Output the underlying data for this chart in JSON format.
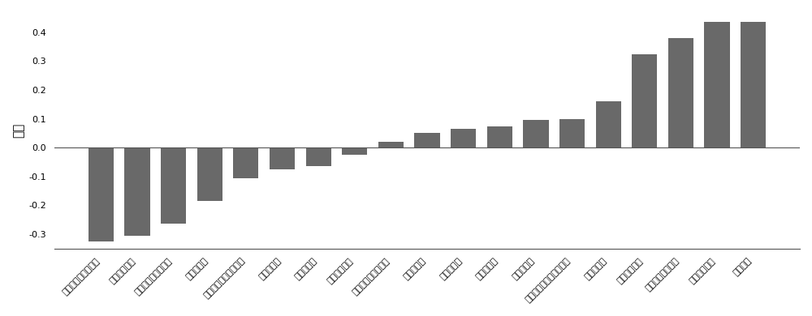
{
  "categories": [
    "右侧顶内沟和顶横沟",
    "左侧中央后沟",
    "右侧外侧裂前水平支",
    "右侧距状沟",
    "右侧岛长回及岛中央沟",
    "右侧侧副沟",
    "右侧中央沟",
    "右侧中央后沟",
    "右侧枕上沟及枕横沟",
    "左侧额中回",
    "左侧枕上回",
    "左侧膈下沟",
    "左侧枕上回",
    "右侧中央前回及中央前沟",
    "右侧枕横沟",
    "右侧额叶皮质",
    "左侧额下回三角部",
    "左侧中央前沟",
    "左侧枕极"
  ],
  "values": [
    -0.325,
    -0.305,
    -0.265,
    -0.185,
    -0.105,
    -0.075,
    -0.065,
    -0.025,
    0.02,
    0.05,
    0.065,
    0.075,
    0.095,
    0.1,
    0.16,
    0.325,
    0.38,
    0.435,
    0.435
  ],
  "bar_color": "#696969",
  "ylabel": "权重",
  "ylim": [
    -0.35,
    0.47
  ],
  "yticks": [
    -0.3,
    -0.2,
    -0.1,
    0.0,
    0.1,
    0.2,
    0.3,
    0.4
  ],
  "background_color": "#ffffff",
  "tick_fontsize": 8.0,
  "ylabel_fontsize": 11
}
